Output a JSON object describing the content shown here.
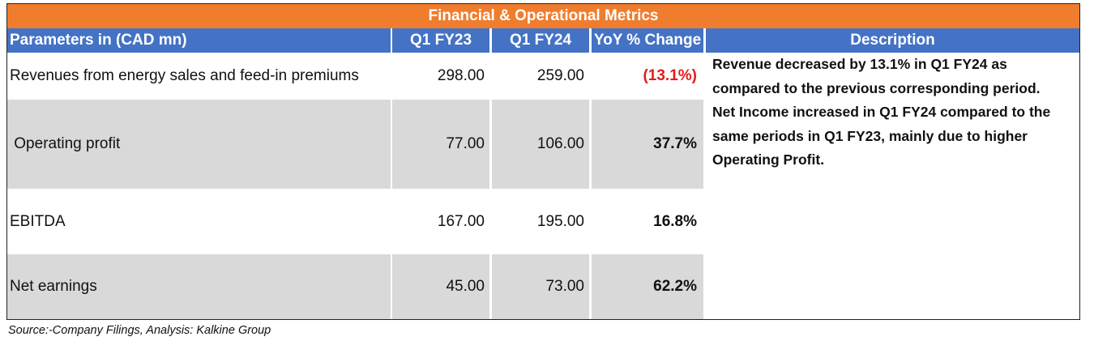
{
  "title": "Financial & Operational Metrics",
  "headers": {
    "parameters": "Parameters in (CAD mn)",
    "q1fy23": "Q1 FY23",
    "q1fy24": "Q1 FY24",
    "yoy": "YoY % Change",
    "description": "Description"
  },
  "rows": [
    {
      "label": "Revenues from energy sales and feed-in premiums",
      "q1fy23": "298.00",
      "q1fy24": "259.00",
      "yoy": "(13.1%)"
    },
    {
      "label": " Operating profit",
      "q1fy23": "77.00",
      "q1fy24": "106.00",
      "yoy": "37.7%"
    },
    {
      "label": "EBITDA",
      "q1fy23": "167.00",
      "q1fy24": "195.00",
      "yoy": "16.8%"
    },
    {
      "label": "Net earnings",
      "q1fy23": "45.00",
      "q1fy24": "73.00",
      "yoy": "62.2%"
    }
  ],
  "description": {
    "line1": "Revenue decreased  by 13.1% in  Q1 FY24 as compared to the previous corresponding period.",
    "line2": "Net Income increased in  Q1 FY24 compared to the same periods in Q1 FY23, mainly due to higher Operating Profit."
  },
  "source": "Source:-Company Filings, Analysis: Kalkine Group",
  "colors": {
    "title_bg": "#F07D2E",
    "header_bg": "#4472C4",
    "row_shade": "#D9D9D9",
    "negative": "#E31B1B"
  }
}
